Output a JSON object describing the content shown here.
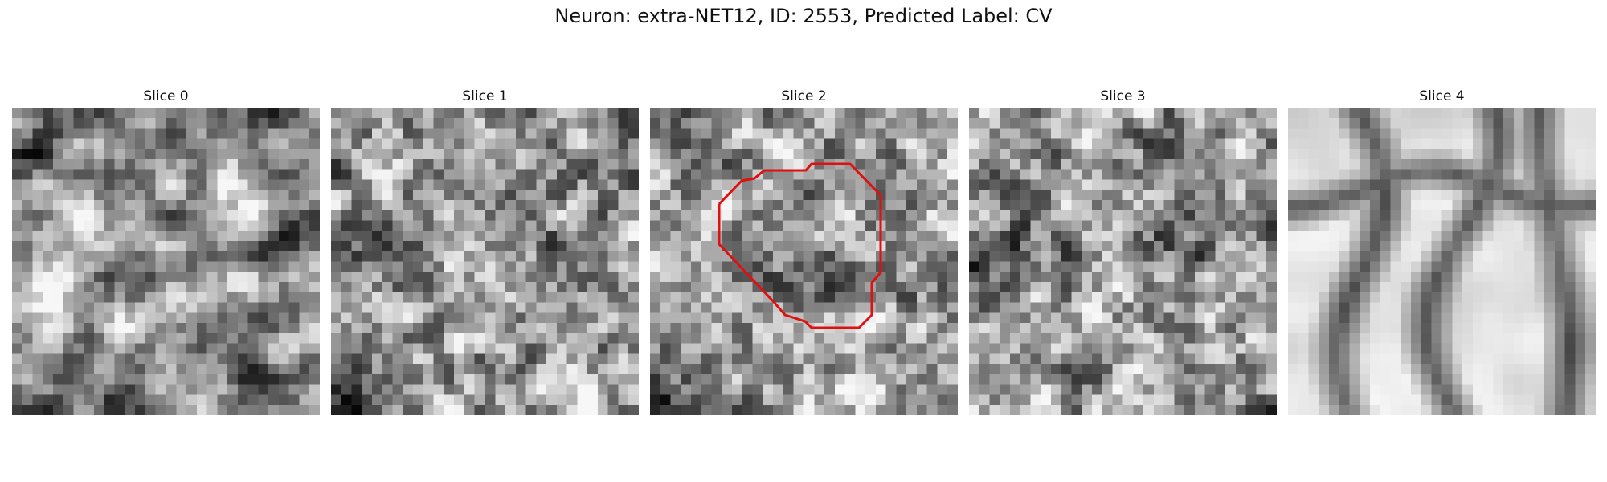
{
  "figure": {
    "title": "Neuron: extra-NET12, ID: 2553, Predicted Label: CV"
  },
  "slices": [
    {
      "title": "Slice 0",
      "pattern": "soft",
      "dark_spots": [
        [
          0.62,
          0.7
        ],
        [
          0.28,
          0.92
        ]
      ],
      "seed": 11
    },
    {
      "title": "Slice 1",
      "pattern": "noisy",
      "dark_spots": [
        [
          0.12,
          0.45
        ],
        [
          0.05,
          0.95
        ]
      ],
      "seed": 23
    },
    {
      "title": "Slice 2",
      "pattern": "noisy",
      "dark_spots": [
        [
          0.52,
          0.5
        ],
        [
          0.05,
          0.92
        ]
      ],
      "seed": 37,
      "has_outline": true
    },
    {
      "title": "Slice 3",
      "pattern": "noisy",
      "dark_spots": [
        [
          0.1,
          0.45
        ],
        [
          0.65,
          0.42
        ]
      ],
      "seed": 41
    },
    {
      "title": "Slice 4",
      "pattern": "membrane",
      "dark_spots": [],
      "seed": 53
    }
  ],
  "outline_color": "#e01010"
}
